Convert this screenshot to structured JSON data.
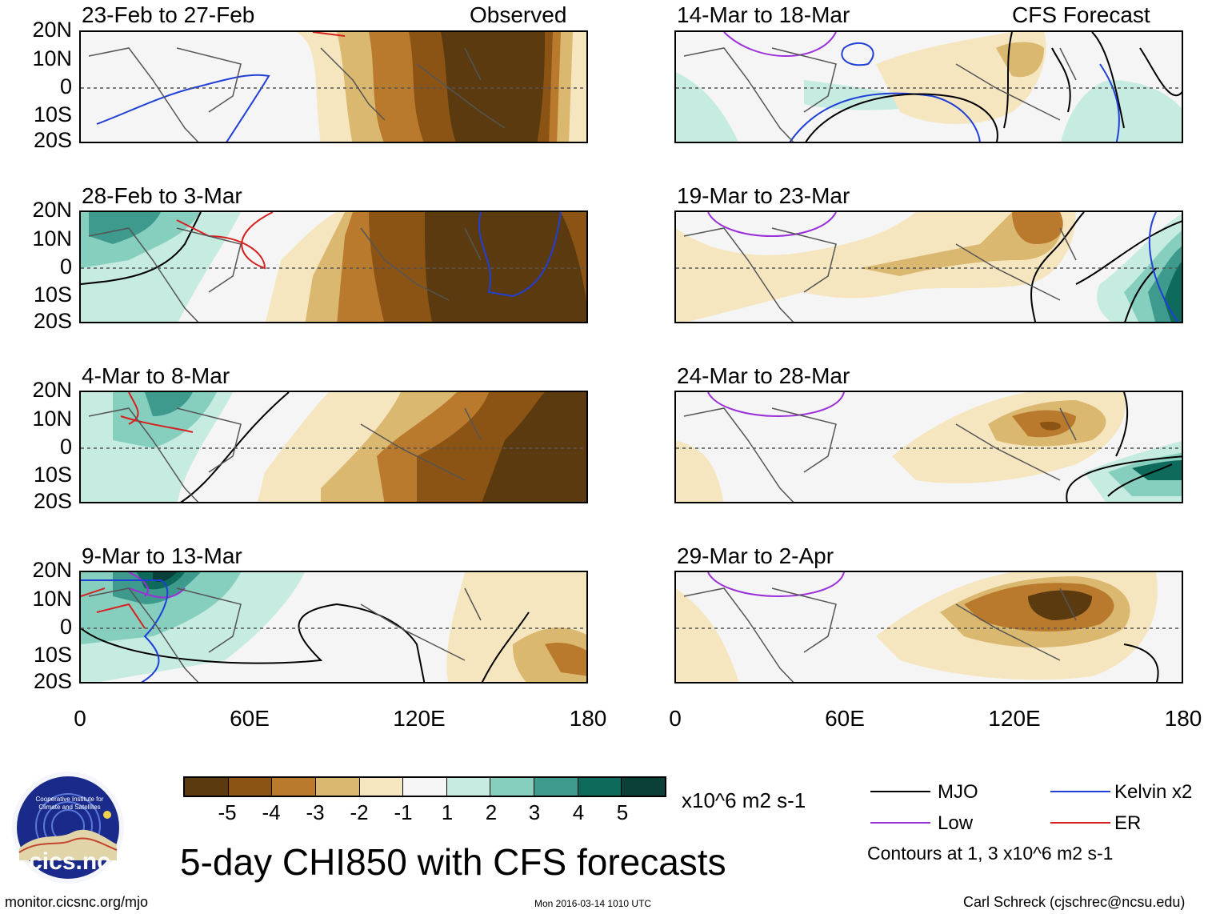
{
  "header": {
    "left_tag": "Observed",
    "right_tag": "CFS Forecast"
  },
  "panels": {
    "p1": {
      "title": "23-Feb to 27-Feb"
    },
    "p2": {
      "title": "28-Feb to 3-Mar"
    },
    "p3": {
      "title": "4-Mar to 8-Mar"
    },
    "p4": {
      "title": "9-Mar to 13-Mar"
    },
    "p5": {
      "title": "14-Mar to 18-Mar"
    },
    "p6": {
      "title": "19-Mar to 23-Mar"
    },
    "p7": {
      "title": "24-Mar to 28-Mar"
    },
    "p8": {
      "title": "29-Mar to 2-Apr"
    }
  },
  "lat_labels": [
    "20N",
    "10N",
    "0",
    "10S",
    "20S"
  ],
  "lon_labels": [
    "0",
    "60E",
    "120E",
    "180"
  ],
  "colorbar": {
    "labels": [
      "-5",
      "-4",
      "-3",
      "-2",
      "-1",
      "1",
      "2",
      "3",
      "4",
      "5"
    ],
    "colors": [
      "#5a3a0e",
      "#8c5414",
      "#b97a2d",
      "#dbb870",
      "#f6e6c0",
      "#f5f5f5",
      "#c6ebe1",
      "#86cfbf",
      "#3d9a8c",
      "#0e6b5c",
      "#0a4038"
    ],
    "units": "x10^6 m2 s-1"
  },
  "legend": {
    "items": [
      {
        "label": "MJO",
        "color": "#000000"
      },
      {
        "label": "Kelvin x2",
        "color": "#1f3fd6"
      },
      {
        "label": "Low",
        "color": "#9b30d9"
      },
      {
        "label": "ER",
        "color": "#d62020"
      }
    ],
    "contours_note": "Contours at 1, 3 x10^6 m2 s-1"
  },
  "logo": {
    "text": "cics.nc",
    "arc_text": "Cooperative Institute for Climate and Satellites"
  },
  "main_title": "5-day CHI850 with CFS forecasts",
  "footer": {
    "url": "monitor.cicsnc.org/mjo",
    "timestamp": "Mon 2016-03-14 1010 UTC",
    "author": "Carl Schreck (cjschrec@ncsu.edu)"
  }
}
